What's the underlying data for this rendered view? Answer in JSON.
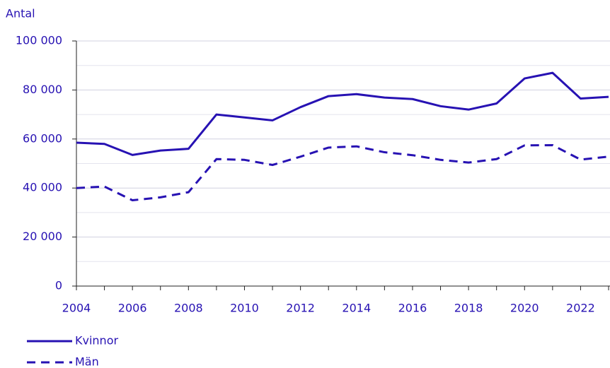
{
  "chart_data": {
    "type": "line",
    "y_label": "Antal",
    "x": [
      2004,
      2005,
      2006,
      2007,
      2008,
      2009,
      2010,
      2011,
      2012,
      2013,
      2014,
      2015,
      2016,
      2017,
      2018,
      2019,
      2020,
      2021,
      2022,
      2023
    ],
    "series": [
      {
        "name": "Kvinnor",
        "color": "#2712b3",
        "line_style": "solid",
        "values": [
          58500,
          58000,
          53500,
          55300,
          56000,
          70000,
          68800,
          67600,
          73000,
          77500,
          78300,
          76900,
          76300,
          73400,
          72000,
          74500,
          84700,
          87000,
          76500,
          77200
        ]
      },
      {
        "name": "Män",
        "color": "#2712b3",
        "line_style": "dashed",
        "values": [
          40000,
          40600,
          35000,
          36200,
          38300,
          51800,
          51500,
          49400,
          52800,
          56500,
          57000,
          54600,
          53400,
          51500,
          50400,
          51800,
          57400,
          57500,
          51600,
          52800
        ]
      }
    ],
    "xlim": [
      2004,
      2023
    ],
    "xticks": [
      2004,
      2006,
      2008,
      2010,
      2012,
      2014,
      2016,
      2018,
      2020,
      2022
    ],
    "minor_xticks": [
      2005,
      2007,
      2009,
      2011,
      2013,
      2015,
      2017,
      2019,
      2021,
      2023
    ],
    "ylim": [
      0,
      100000
    ],
    "yticks": [
      0,
      {
        "value": 20000,
        "label": "20 000"
      },
      {
        "value": 40000,
        "label": "40 000"
      },
      {
        "value": 60000,
        "label": "60 000"
      },
      {
        "value": 80000,
        "label": "80 000"
      },
      {
        "value": 100000,
        "label": "100 000"
      }
    ],
    "minor_yticks": [
      10000,
      30000,
      50000,
      70000,
      90000
    ],
    "grid": true,
    "legend": "bottom-left"
  }
}
